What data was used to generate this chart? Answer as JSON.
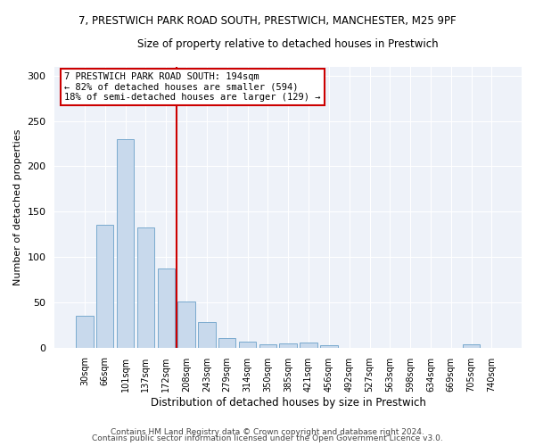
{
  "title1": "7, PRESTWICH PARK ROAD SOUTH, PRESTWICH, MANCHESTER, M25 9PF",
  "title2": "Size of property relative to detached houses in Prestwich",
  "xlabel": "Distribution of detached houses by size in Prestwich",
  "ylabel": "Number of detached properties",
  "categories": [
    "30sqm",
    "66sqm",
    "101sqm",
    "137sqm",
    "172sqm",
    "208sqm",
    "243sqm",
    "279sqm",
    "314sqm",
    "350sqm",
    "385sqm",
    "421sqm",
    "456sqm",
    "492sqm",
    "527sqm",
    "563sqm",
    "598sqm",
    "634sqm",
    "669sqm",
    "705sqm",
    "740sqm"
  ],
  "values": [
    35,
    136,
    230,
    133,
    87,
    51,
    28,
    11,
    7,
    4,
    5,
    6,
    3,
    0,
    0,
    0,
    0,
    0,
    0,
    4,
    0
  ],
  "bar_color": "#c8d9ec",
  "bar_edge_color": "#7aaace",
  "vline_color": "#cc0000",
  "annotation_text": "7 PRESTWICH PARK ROAD SOUTH: 194sqm\n← 82% of detached houses are smaller (594)\n18% of semi-detached houses are larger (129) →",
  "annotation_box_color": "#ffffff",
  "annotation_box_edge": "#cc0000",
  "ylim": [
    0,
    310
  ],
  "yticks": [
    0,
    50,
    100,
    150,
    200,
    250,
    300
  ],
  "footer1": "Contains HM Land Registry data © Crown copyright and database right 2024.",
  "footer2": "Contains public sector information licensed under the Open Government Licence v3.0.",
  "bg_color": "#eef2f9",
  "grid_color": "#ffffff"
}
